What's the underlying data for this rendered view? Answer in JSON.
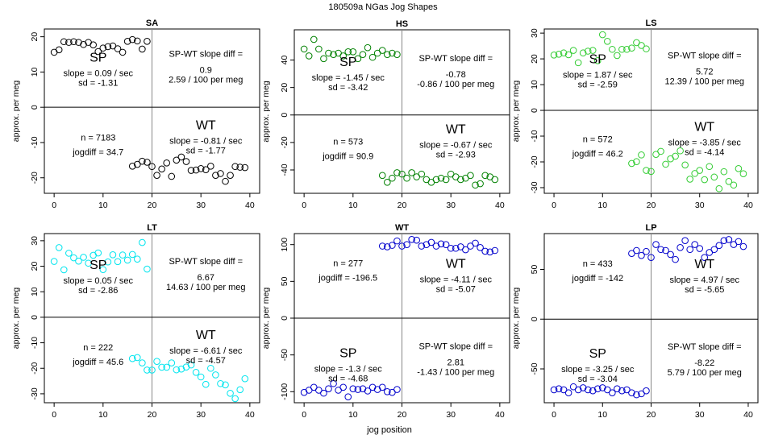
{
  "figure": {
    "title": "180509a    NGas Jog Shapes",
    "xlabel": "jog position"
  },
  "chart_data": [
    {
      "type": "scatter",
      "panel": "SA",
      "title": "SA",
      "color": "#000000",
      "ylabel": "approx. per meg",
      "xlim": [
        -2,
        42
      ],
      "ylim": [
        -24.4,
        22.2
      ],
      "yticks": [
        -20,
        -10,
        0,
        10,
        20
      ],
      "xticks": [
        0,
        10,
        20,
        30,
        40
      ],
      "sp_y": [
        15.6,
        16.3,
        18.6,
        18.4,
        18.6,
        18.4,
        17.8,
        18.4,
        17.7,
        15.8,
        16.8,
        17.2,
        17.4,
        16.6,
        15.6,
        18.7,
        19.2,
        18.8,
        16.5,
        18.7
      ],
      "wt_y": [
        -16.7,
        -16.2,
        -15.3,
        -15.6,
        -16.8,
        -19.3,
        -17.5,
        -15.8,
        -19.6,
        -15.0,
        -14.1,
        -15.4,
        -17.9,
        -17.8,
        -17.4,
        -17.7,
        -16.7,
        -19.3,
        -18.8,
        -21.0,
        -19.3,
        -16.8,
        -17.0,
        -17.1
      ],
      "labels": {
        "n": "n = 7183",
        "jogdiff": "jogdiff = 34.7",
        "sp": "SP",
        "wt": "WT",
        "sp_slope": "slope = 0.09 / sec",
        "sp_sd": "sd = -1.31",
        "wt_slope": "slope = -0.81 / sec",
        "wt_sd": "sd = -1.77",
        "diff_title": "SP-WT slope diff =",
        "diff_val": "0.9",
        "diff_meg": "2.59 / 100 per meg"
      },
      "layout": {
        "sp_quadrant": "top",
        "n_quadrant": "bottom"
      }
    },
    {
      "type": "scatter",
      "panel": "HS",
      "title": "HS",
      "color": "#008000",
      "ylabel": "approx. per meg",
      "xlim": [
        -2,
        42
      ],
      "ylim": [
        -57,
        62
      ],
      "yticks": [
        -40,
        -20,
        0,
        20,
        40
      ],
      "xticks": [
        0,
        10,
        20,
        30,
        40
      ],
      "sp_y": [
        48,
        43,
        55,
        48,
        41,
        45,
        44,
        45,
        43,
        46,
        46,
        41,
        44,
        49,
        42,
        45,
        47,
        44,
        45,
        44
      ],
      "wt_y": [
        -44,
        -49,
        -46,
        -42,
        -43,
        -46,
        -42,
        -45,
        -43,
        -47,
        -49,
        -47,
        -46,
        -47,
        -43,
        -45,
        -47,
        -46,
        -44,
        -51,
        -50,
        -44,
        -45,
        -47
      ],
      "labels": {
        "n": "n = 573",
        "jogdiff": "jogdiff = 90.9",
        "sp": "SP",
        "wt": "WT",
        "sp_slope": "slope = -1.45 / sec",
        "sp_sd": "sd = -3.42",
        "wt_slope": "slope = -0.67 / sec",
        "wt_sd": "sd = -2.93",
        "diff_title": "SP-WT slope diff =",
        "diff_val": "-0.78",
        "diff_meg": "-0.86 / 100 per meg"
      },
      "layout": {
        "sp_quadrant": "top",
        "n_quadrant": "bottom"
      }
    },
    {
      "type": "scatter",
      "panel": "LS",
      "title": "LS",
      "color": "#33cc33",
      "ylabel": "approx. per meg",
      "xlim": [
        -2,
        42
      ],
      "ylim": [
        -32.2,
        31.6
      ],
      "yticks": [
        -30,
        -20,
        -10,
        0,
        10,
        20,
        30
      ],
      "xticks": [
        0,
        10,
        20,
        30,
        40
      ],
      "sp_y": [
        21.5,
        21.8,
        22.3,
        21.6,
        23.3,
        18.5,
        22.3,
        23.0,
        23.3,
        19.3,
        29.4,
        26.8,
        23.7,
        21.3,
        23.7,
        23.7,
        24.2,
        26.3,
        25.2,
        23.9
      ],
      "wt_y": [
        -20.6,
        -19.9,
        -17.3,
        -23.3,
        -23.7,
        -17.1,
        -15.9,
        -20.9,
        -18.8,
        -17.8,
        -15.7,
        -21.2,
        -26.7,
        -24.5,
        -23.3,
        -26.9,
        -21.8,
        -25.9,
        -30.4,
        -23.8,
        -27.6,
        -29.0,
        -22.6,
        -24.6
      ],
      "labels": {
        "n": "n = 572",
        "jogdiff": "jogdiff = 46.2",
        "sp": "SP",
        "wt": "WT",
        "sp_slope": "slope = 1.87 / sec",
        "sp_sd": "sd = -2.59",
        "wt_slope": "slope = -3.85 / sec",
        "wt_sd": "sd = -4.14",
        "diff_title": "SP-WT slope diff =",
        "diff_val": "5.72",
        "diff_meg": "12.39 / 100 per meg"
      },
      "layout": {
        "sp_quadrant": "top",
        "n_quadrant": "bottom"
      }
    },
    {
      "type": "scatter",
      "panel": "LT",
      "title": "LT",
      "color": "#00e5ee",
      "ylabel": "approx. per meg",
      "xlim": [
        -2,
        42
      ],
      "ylim": [
        -33.5,
        32.8
      ],
      "yticks": [
        -30,
        -20,
        -10,
        0,
        10,
        20,
        30
      ],
      "xticks": [
        0,
        10,
        20,
        30,
        40
      ],
      "sp_y": [
        21.9,
        27.3,
        18.6,
        25.1,
        23.3,
        22.0,
        23.5,
        21.2,
        24.3,
        25.2,
        18.7,
        21.7,
        24.5,
        21.8,
        24.4,
        22.4,
        24.6,
        22.8,
        29.3,
        18.9
      ],
      "wt_y": [
        -16.2,
        -15.8,
        -17.9,
        -20.7,
        -20.7,
        -17.3,
        -19.6,
        -19.6,
        -17.9,
        -20.6,
        -20.3,
        -19.5,
        -18.7,
        -21.6,
        -23.4,
        -26.3,
        -20.0,
        -22.6,
        -26.0,
        -26.5,
        -29.8,
        -31.9,
        -28.4,
        -24.1
      ],
      "labels": {
        "n": "n = 222",
        "jogdiff": "jogdiff = 45.6",
        "sp": "SP",
        "wt": "WT",
        "sp_slope": "slope = 0.05 / sec",
        "sp_sd": "sd = -2.86",
        "wt_slope": "slope = -6.61 / sec",
        "wt_sd": "sd = -4.57",
        "diff_title": "SP-WT slope diff =",
        "diff_val": "6.67",
        "diff_meg": "14.63 / 100 per meg"
      },
      "layout": {
        "sp_quadrant": "top",
        "n_quadrant": "bottom"
      }
    },
    {
      "type": "scatter",
      "panel": "WT",
      "title": "WT",
      "color": "#0000cc",
      "ylabel": "approx. per meg",
      "xlim": [
        -2,
        42
      ],
      "ylim": [
        -115,
        115
      ],
      "yticks": [
        -100,
        -50,
        0,
        50,
        100
      ],
      "xticks": [
        0,
        10,
        20,
        30,
        40
      ],
      "sp_y": [
        -101,
        -98,
        -94,
        -98,
        -102,
        -96,
        -89,
        -98,
        -94,
        -107,
        -96,
        -97,
        -96,
        -99,
        -94,
        -97,
        -94,
        -100,
        -101,
        -97
      ],
      "wt_y": [
        98,
        97,
        99,
        105,
        98,
        100,
        107,
        106,
        98,
        100,
        103,
        98,
        101,
        100,
        95,
        95,
        97,
        93,
        98,
        102,
        96,
        91,
        90,
        92
      ],
      "labels": {
        "n": "n = 277",
        "jogdiff": "jogdiff = -196.5",
        "sp": "SP",
        "wt": "WT",
        "sp_slope": "slope = -1.3 / sec",
        "sp_sd": "sd = -4.68",
        "wt_slope": "slope = -4.11 / sec",
        "wt_sd": "sd = -5.07",
        "diff_title": "SP-WT slope diff =",
        "diff_val": "2.81",
        "diff_meg": "-1.43 / 100 per meg"
      },
      "layout": {
        "sp_quadrant": "bottom",
        "n_quadrant": "top"
      }
    },
    {
      "type": "scatter",
      "panel": "LP",
      "title": "LP",
      "color": "#0000cc",
      "ylabel": "approx. per meg",
      "xlim": [
        -2,
        42
      ],
      "ylim": [
        -84,
        86
      ],
      "yticks": [
        -50,
        0,
        50
      ],
      "xticks": [
        0,
        10,
        20,
        30,
        40
      ],
      "sp_y": [
        -71,
        -70,
        -71,
        -74,
        -68,
        -71,
        -69,
        -71,
        -72,
        -70,
        -69,
        -71,
        -74,
        -70,
        -72,
        -71,
        -74,
        -76,
        -75,
        -72
      ],
      "wt_y": [
        66,
        69,
        64,
        68,
        62,
        75,
        70,
        69,
        65,
        60,
        72,
        79,
        70,
        75,
        71,
        62,
        67,
        70,
        74,
        79,
        80,
        75,
        78,
        73
      ],
      "labels": {
        "n": "n = 433",
        "jogdiff": "jogdiff = -142",
        "sp": "SP",
        "wt": "WT",
        "sp_slope": "slope = -3.25 / sec",
        "sp_sd": "sd = -3.04",
        "wt_slope": "slope = 4.97 / sec",
        "wt_sd": "sd = -5.65",
        "diff_title": "SP-WT slope diff =",
        "diff_val": "-8.22",
        "diff_meg": "5.79 / 100 per meg"
      },
      "layout": {
        "sp_quadrant": "bottom",
        "n_quadrant": "top"
      }
    }
  ]
}
